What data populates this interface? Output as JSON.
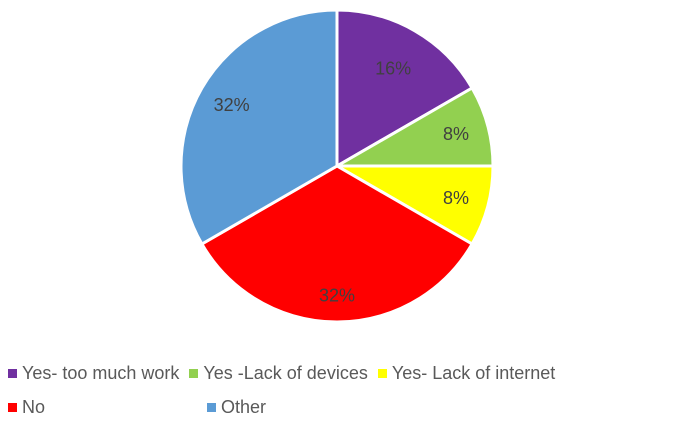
{
  "chart_data": {
    "type": "pie",
    "title": "",
    "categories": [
      "Yes- too much work",
      "Yes -Lack of devices",
      "Yes- Lack of internet",
      "No",
      "Other"
    ],
    "values": [
      16,
      8,
      8,
      32,
      32
    ],
    "labels": [
      "16%",
      "8%",
      "8%",
      "32%",
      "32%"
    ],
    "colors": [
      "#7030a0",
      "#92d050",
      "#ffff00",
      "#ff0000",
      "#5b9bd5"
    ],
    "legend_position": "bottom",
    "start": "12 o'clock",
    "direction": "clockwise"
  }
}
